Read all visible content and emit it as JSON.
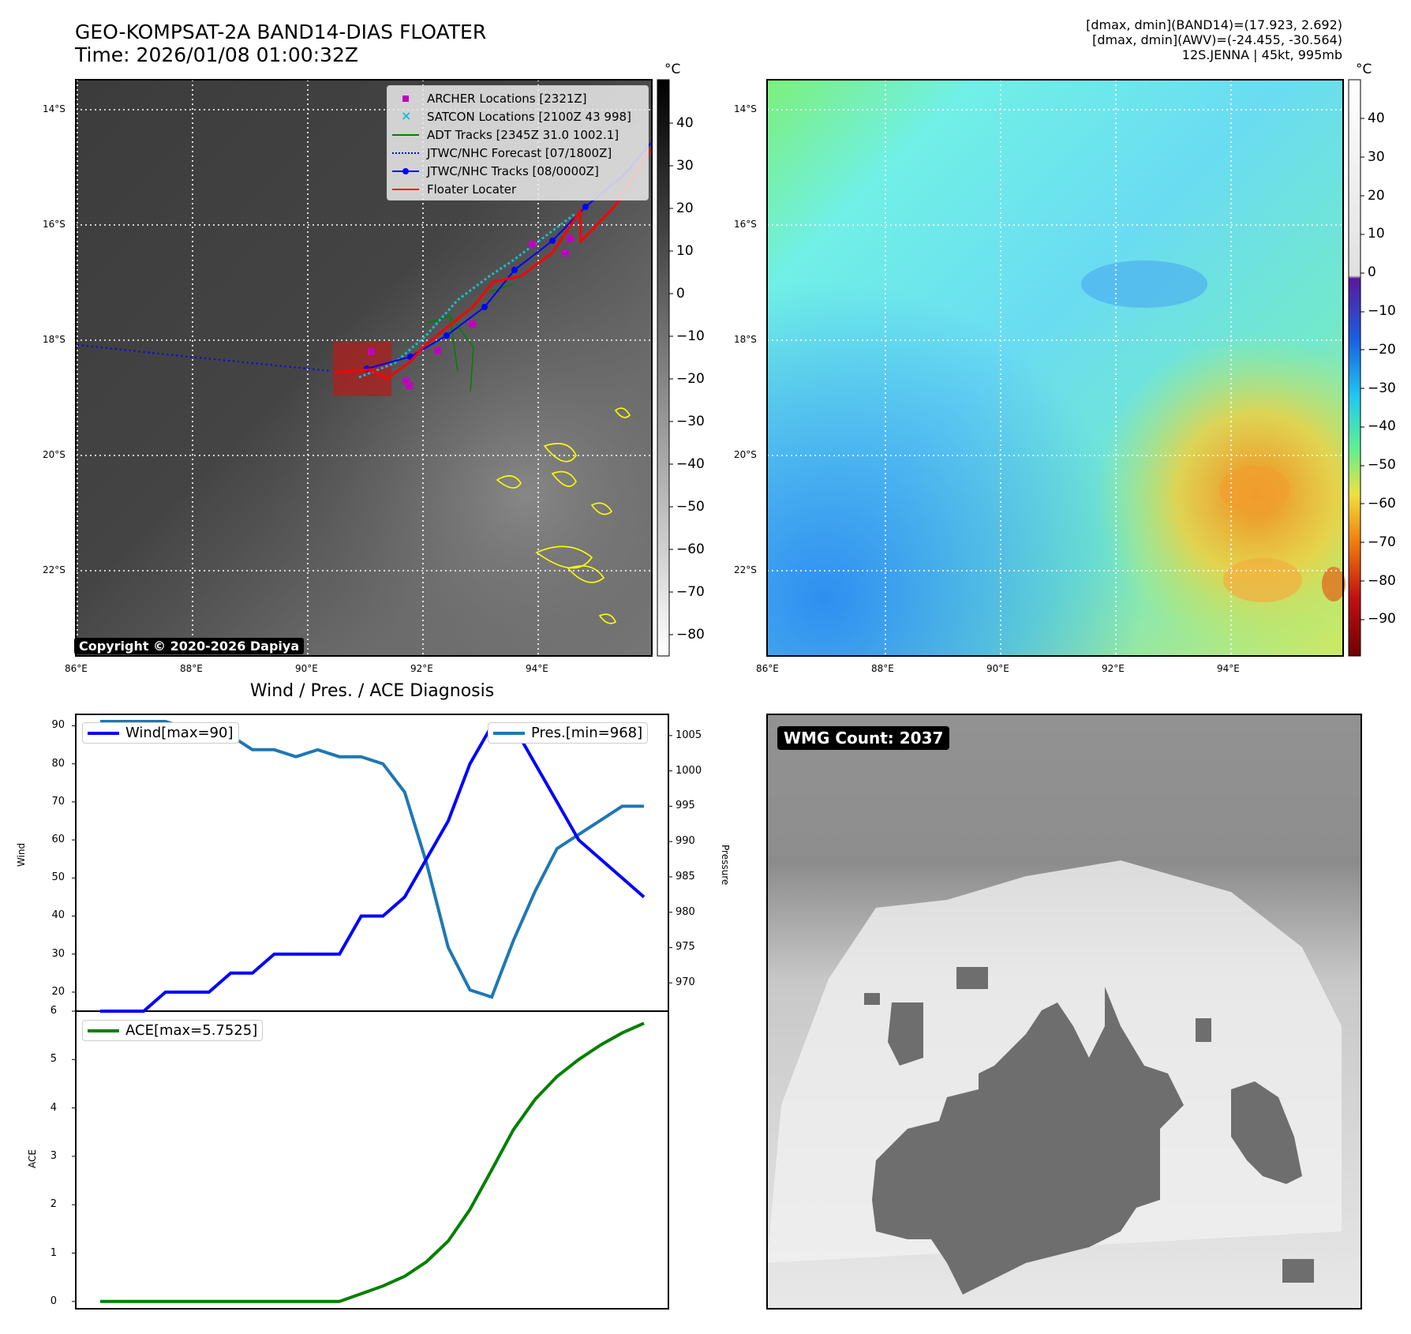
{
  "header": {
    "title_line1": "GEO-KOMPSAT-2A BAND14-DIAS FLOATER",
    "title_line2": "Time: 2026/01/08 01:00:32Z",
    "info_line1": "[dmax, dmin](BAND14)=(17.923, 2.692)",
    "info_line2": "[dmax, dmin](AWV)=(-24.455, -30.564)",
    "info_line3": "12S.JENNA | 45kt, 995mb"
  },
  "map_axes": {
    "lat_labels": [
      "14°S",
      "16°S",
      "18°S",
      "20°S",
      "22°S"
    ],
    "lon_labels": [
      "86°E",
      "88°E",
      "90°E",
      "92°E",
      "94°E"
    ]
  },
  "ir_panel": {
    "colorbar_unit": "°C",
    "colorbar_ticks": [
      "40",
      "30",
      "20",
      "10",
      "0",
      "−10",
      "−20",
      "−30",
      "−40",
      "−50",
      "−60",
      "−70",
      "−80"
    ],
    "copyright": "Copyright © 2020-2026 Dapiya",
    "legend": [
      {
        "label": "ARCHER Locations [2321Z]",
        "color": "#c000c0",
        "icon": "square-marker"
      },
      {
        "label": "SATCON Locations [2100Z 43 998]",
        "color": "#17becf",
        "icon": "x-marker"
      },
      {
        "label": "ADT Tracks [2345Z 31.0 1002.1]",
        "color": "#008000",
        "icon": "solid-line"
      },
      {
        "label": "JTWC/NHC Forecast [07/1800Z]",
        "color": "#0000ff",
        "icon": "dotted-line"
      },
      {
        "label": "JTWC/NHC Tracks [08/0000Z]",
        "color": "#0000ff",
        "icon": "line-dot"
      },
      {
        "label": "Floater Locater",
        "color": "#ff0000",
        "icon": "solid-line"
      }
    ]
  },
  "wv_panel": {
    "colorbar_unit": "°C",
    "colorbar_ticks": [
      "40",
      "30",
      "20",
      "10",
      "0",
      "−10",
      "−20",
      "−30",
      "−40",
      "−50",
      "−60",
      "−70",
      "−80",
      "−90"
    ]
  },
  "wmg_panel": {
    "label": "WMG Count: 2037"
  },
  "chart_data": [
    {
      "type": "line",
      "title": "Wind / Pres. / ACE Diagnosis",
      "ylabel": "Wind",
      "y2label": "Pressure",
      "ylim": [
        15,
        93
      ],
      "y2lim": [
        966,
        1008
      ],
      "yticks": [
        20,
        30,
        40,
        50,
        60,
        70,
        80,
        90
      ],
      "y2ticks": [
        970,
        975,
        980,
        985,
        990,
        995,
        1000,
        1005
      ],
      "series": [
        {
          "name": "Wind[max=90]",
          "color": "#0000ff",
          "values": [
            15,
            15,
            15,
            20,
            20,
            20,
            25,
            25,
            30,
            30,
            30,
            30,
            40,
            40,
            45,
            55,
            65,
            80,
            90,
            90,
            80,
            70,
            60,
            55,
            50,
            45
          ]
        },
        {
          "name": "Pres.[min=968]",
          "color": "#1f77b4",
          "values": [
            1007,
            1007,
            1007,
            1007,
            1006,
            1006,
            1005,
            1003,
            1003,
            1002,
            1003,
            1002,
            1002,
            1001,
            997,
            987,
            975,
            969,
            968,
            976,
            983,
            989,
            991,
            993,
            995,
            995
          ]
        }
      ]
    },
    {
      "type": "line",
      "ylabel": "ACE",
      "ylim": [
        -0.15,
        6
      ],
      "yticks": [
        0,
        1,
        2,
        3,
        4,
        5,
        6
      ],
      "series": [
        {
          "name": "ACE[max=5.7525]",
          "color": "#008000",
          "values": [
            0,
            0,
            0,
            0,
            0,
            0,
            0,
            0,
            0,
            0,
            0,
            0,
            0.16,
            0.32,
            0.52,
            0.82,
            1.25,
            1.9,
            2.72,
            3.55,
            4.18,
            4.65,
            5.0,
            5.3,
            5.55,
            5.75
          ]
        }
      ]
    }
  ]
}
